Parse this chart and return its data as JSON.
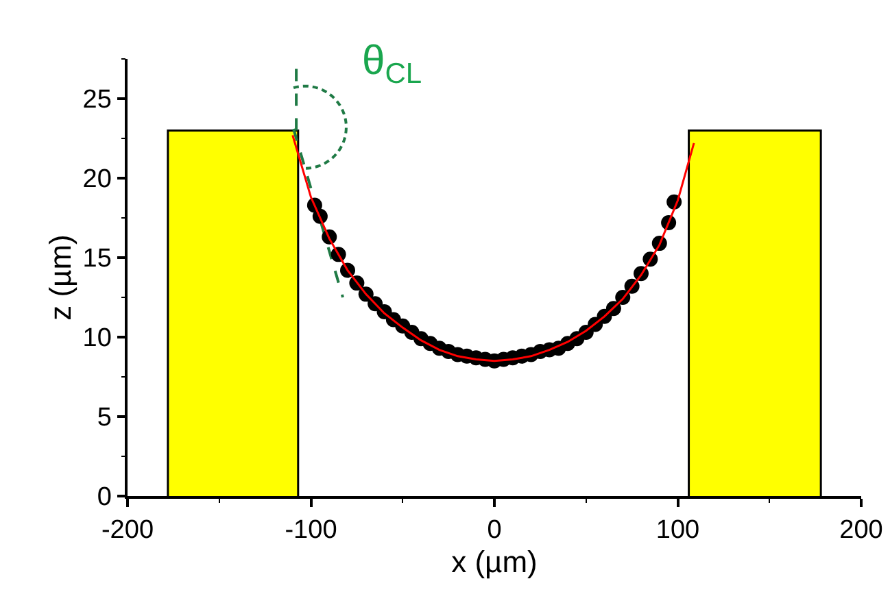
{
  "chart_data": {
    "type": "scatter",
    "xlabel": "x (µm)",
    "ylabel": "z (µm)",
    "xlim": [
      -200,
      200
    ],
    "xticks": [
      -200,
      -100,
      0,
      100,
      200
    ],
    "ylim": [
      0,
      27.5
    ],
    "yticks": [
      0,
      5,
      10,
      15,
      20,
      25
    ],
    "grid": false,
    "legend": false,
    "annotations": [
      "θ$_{CL}$"
    ],
    "series": [
      {
        "type": "area",
        "color": "#ffff00",
        "x": [
          -178,
          -178,
          -107,
          -107
        ],
        "values": [
          0,
          23,
          23,
          0
        ]
      },
      {
        "type": "area",
        "color": "#ffff00",
        "x": [
          106,
          106,
          178,
          178
        ],
        "values": [
          0,
          23,
          23,
          0
        ]
      },
      {
        "type": "line",
        "color": "#1f7a45",
        "line_style": "dashed",
        "x": [
          -108,
          -108
        ],
        "values": [
          23,
          27.5
        ]
      },
      {
        "type": "line",
        "color": "#1f7a45",
        "line_style": "dashed",
        "x": [
          -109.5,
          -82.6
        ],
        "values": [
          23.1,
          12.5
        ]
      },
      {
        "color": "#000000",
        "marker": "circle",
        "x": [
          -98,
          -95,
          -90,
          -85,
          -80,
          -75,
          -70,
          -65,
          -60,
          -55,
          -50,
          -45,
          -40,
          -35,
          -30,
          -25,
          -20,
          -15,
          -10,
          -5,
          0,
          5,
          10,
          15,
          20,
          25,
          30,
          35,
          40,
          45,
          50,
          55,
          60,
          65,
          70,
          75,
          80,
          85,
          90,
          95,
          98
        ],
        "values": [
          18.3,
          17.6,
          16.3,
          15.2,
          14.2,
          13.4,
          12.7,
          12.1,
          11.6,
          11.1,
          10.7,
          10.3,
          9.9,
          9.6,
          9.3,
          9.1,
          8.9,
          8.8,
          8.7,
          8.6,
          8.5,
          8.6,
          8.7,
          8.8,
          8.9,
          9.1,
          9.2,
          9.3,
          9.6,
          9.9,
          10.3,
          10.8,
          11.3,
          11.8,
          12.5,
          13.2,
          14.0,
          14.9,
          15.9,
          17.2,
          18.5
        ]
      },
      {
        "type": "line",
        "color": "#ff0000",
        "line_style": "solid",
        "x": [
          -110,
          -100,
          -90,
          -80,
          -70,
          -60,
          -50,
          -40,
          -30,
          -20,
          -10,
          0,
          10,
          20,
          30,
          40,
          50,
          60,
          70,
          80,
          90,
          100,
          108.8
        ],
        "values": [
          22.7,
          18.8,
          16.2,
          14.2,
          12.7,
          11.5,
          10.6,
          9.8,
          9.2,
          8.8,
          8.6,
          8.5,
          8.6,
          8.8,
          9.2,
          9.7,
          10.4,
          11.3,
          12.4,
          13.9,
          15.8,
          18.6,
          22.2
        ]
      }
    ]
  }
}
